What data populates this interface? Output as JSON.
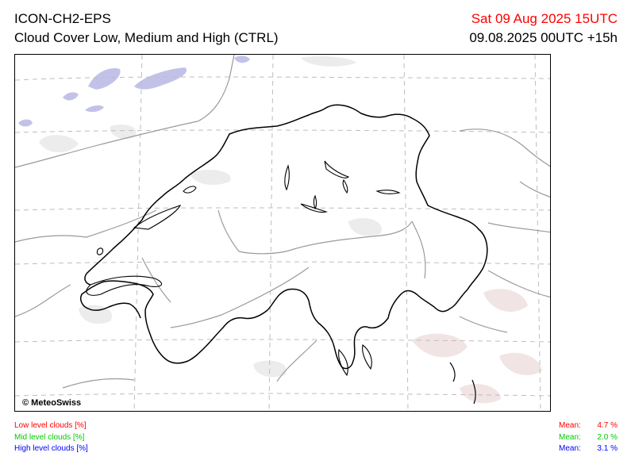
{
  "header": {
    "model": "ICON-CH2-EPS",
    "product": "Cloud Cover Low, Medium and High (CTRL)",
    "valid_time": "Sat 09 Aug 2025 15UTC",
    "run_time": "09.08.2025 00UTC +15h"
  },
  "map": {
    "copyright": "© MeteoSwiss"
  },
  "legend": {
    "low": {
      "label": "Low level clouds [%]",
      "mean_label": "Mean:",
      "mean_value": "4.7 %",
      "color": "#ff0000"
    },
    "mid": {
      "label": "Mid level clouds [%]",
      "mean_label": "Mean:",
      "mean_value": "2.0 %",
      "color": "#00cc00"
    },
    "high": {
      "label": "High level clouds [%]",
      "mean_label": "Mean:",
      "mean_value": "3.1 %",
      "color": "#0000ff"
    }
  },
  "colors": {
    "valid_time": "#ff0000",
    "high_clouds_fill": "#b8b8e6",
    "low_clouds_fill": "#f1e4e4",
    "mid_clouds_fill": "#eeeeee"
  }
}
